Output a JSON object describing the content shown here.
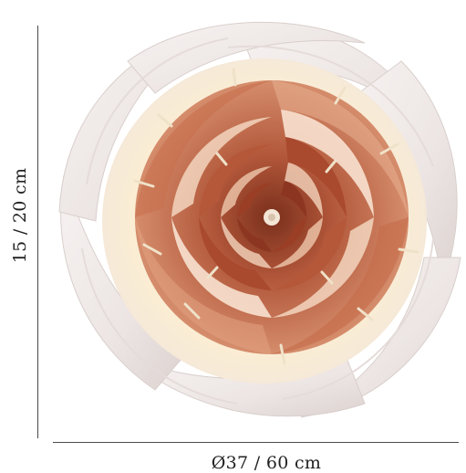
{
  "product_image": {
    "subject": "spiral-pendant-lamp",
    "height_label": "15 / 20 cm",
    "diameter_label": "Ø37 / 60 cm",
    "colors": {
      "outer_petals": "#f1ecea",
      "inner_copper": "#b35a3e",
      "glow": "#fff6d8",
      "dimension_lines": "#4a4a4a"
    }
  }
}
